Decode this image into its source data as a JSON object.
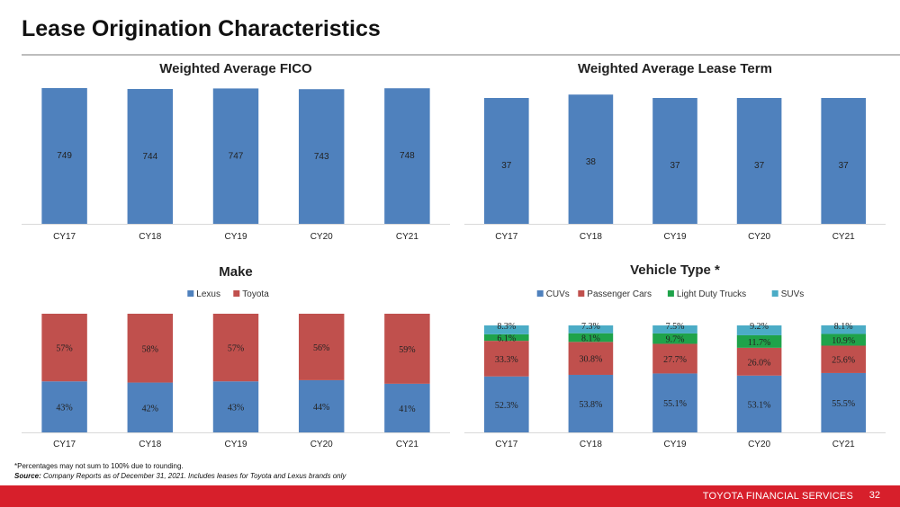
{
  "page": {
    "title": "Lease Origination Characteristics",
    "note": "*Percentages may not sum to 100% due to rounding.",
    "source_label": "Source:",
    "source_text": "Company Reports as of December 31, 2021. Includes leases for Toyota and Lexus brands only",
    "footer": "TOYOTA FINANCIAL SERVICES",
    "page_number": "32"
  },
  "colors": {
    "blue": "#4f81bd",
    "red": "#c0504d",
    "green": "#1fa34a",
    "teal": "#4bacc6",
    "footer": "#d71f2b"
  },
  "chart_data": [
    {
      "id": "fico",
      "type": "bar",
      "title": "Weighted Average FICO",
      "categories": [
        "CY17",
        "CY18",
        "CY19",
        "CY20",
        "CY21"
      ],
      "series": [
        {
          "values": [
            749,
            744,
            747,
            743,
            748
          ]
        }
      ],
      "labels": [
        "749",
        "744",
        "747",
        "743",
        "748"
      ],
      "ylim": [
        0,
        749
      ],
      "grid": false
    },
    {
      "id": "term",
      "type": "bar",
      "title": "Weighted Average Lease Term",
      "categories": [
        "CY17",
        "CY18",
        "CY19",
        "CY20",
        "CY21"
      ],
      "series": [
        {
          "values": [
            37,
            38,
            37,
            37,
            37
          ]
        }
      ],
      "labels": [
        "37",
        "38",
        "37",
        "37",
        "37"
      ],
      "ylim": [
        0,
        37
      ],
      "grid": false
    },
    {
      "id": "make",
      "type": "bar",
      "stacked": true,
      "title": "Make",
      "categories": [
        "CY17",
        "CY18",
        "CY19",
        "CY20",
        "CY21"
      ],
      "legend_position": "top",
      "series": [
        {
          "name": "Lexus",
          "values": [
            43,
            42,
            43,
            44,
            41
          ],
          "labels": [
            "43%",
            "42%",
            "43%",
            "44%",
            "41%"
          ]
        },
        {
          "name": "Toyota",
          "values": [
            57,
            58,
            57,
            56,
            59
          ],
          "labels": [
            "57%",
            "58%",
            "57%",
            "56%",
            "59%"
          ]
        }
      ],
      "ylim": [
        0,
        100
      ],
      "grid": false
    },
    {
      "id": "vehicle",
      "type": "bar",
      "stacked": true,
      "title": "Vehicle Type *",
      "categories": [
        "CY17",
        "CY18",
        "CY19",
        "CY20",
        "CY21"
      ],
      "legend_position": "top",
      "series": [
        {
          "name": "CUVs",
          "values": [
            52.3,
            53.8,
            55.1,
            53.1,
            55.5
          ],
          "labels": [
            "52.3%",
            "53.8%",
            "55.1%",
            "53.1%",
            "55.5%"
          ]
        },
        {
          "name": "Passenger Cars",
          "values": [
            33.3,
            30.8,
            27.7,
            26.0,
            25.6
          ],
          "labels": [
            "33.3%",
            "30.8%",
            "27.7%",
            "26.0%",
            "25.6%"
          ]
        },
        {
          "name": "Light Duty Trucks",
          "values": [
            6.1,
            8.1,
            9.7,
            11.7,
            10.9
          ],
          "labels": [
            "6.1%",
            "8.1%",
            "9.7%",
            "11.7%",
            "10.9%"
          ]
        },
        {
          "name": "SUVs",
          "values": [
            8.3,
            7.3,
            7.5,
            9.2,
            8.1
          ],
          "labels": [
            "8.3%",
            "7.3%",
            "7.5%",
            "9.2%",
            "8.1%"
          ]
        }
      ],
      "ylim": [
        0,
        100
      ],
      "grid": false
    }
  ]
}
